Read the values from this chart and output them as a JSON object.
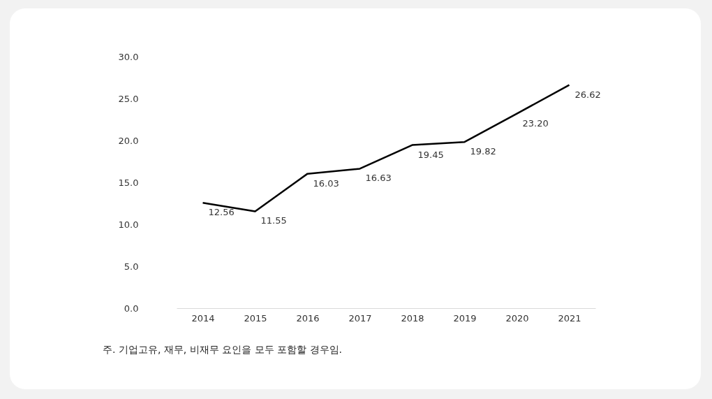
{
  "chart_data": {
    "type": "line",
    "categories": [
      "2014",
      "2015",
      "2016",
      "2017",
      "2018",
      "2019",
      "2020",
      "2021"
    ],
    "series": [
      {
        "color": "#000000",
        "values": [
          12.56,
          11.55,
          16.03,
          16.63,
          19.45,
          19.82,
          23.2,
          26.62
        ],
        "value_labels": [
          "12.56",
          "11.55",
          "16.03",
          "16.63",
          "19.45",
          "19.82",
          "23.20",
          "26.62"
        ]
      }
    ],
    "ylim": [
      0,
      30
    ],
    "yticks": [
      {
        "value": 0,
        "label": "0.0"
      },
      {
        "value": 5,
        "label": "5.0"
      },
      {
        "value": 10,
        "label": "10.0"
      },
      {
        "value": 15,
        "label": "15.0"
      },
      {
        "value": 20,
        "label": "20.0"
      },
      {
        "value": 25,
        "label": "25.0"
      },
      {
        "value": 30,
        "label": "30.0"
      }
    ],
    "grid": false,
    "legend": false,
    "marker": "none",
    "line_style": "solid",
    "annotations": [
      "주. 기업고유, 재무, 비재무 요인을 모두 포함할 경우임."
    ]
  }
}
